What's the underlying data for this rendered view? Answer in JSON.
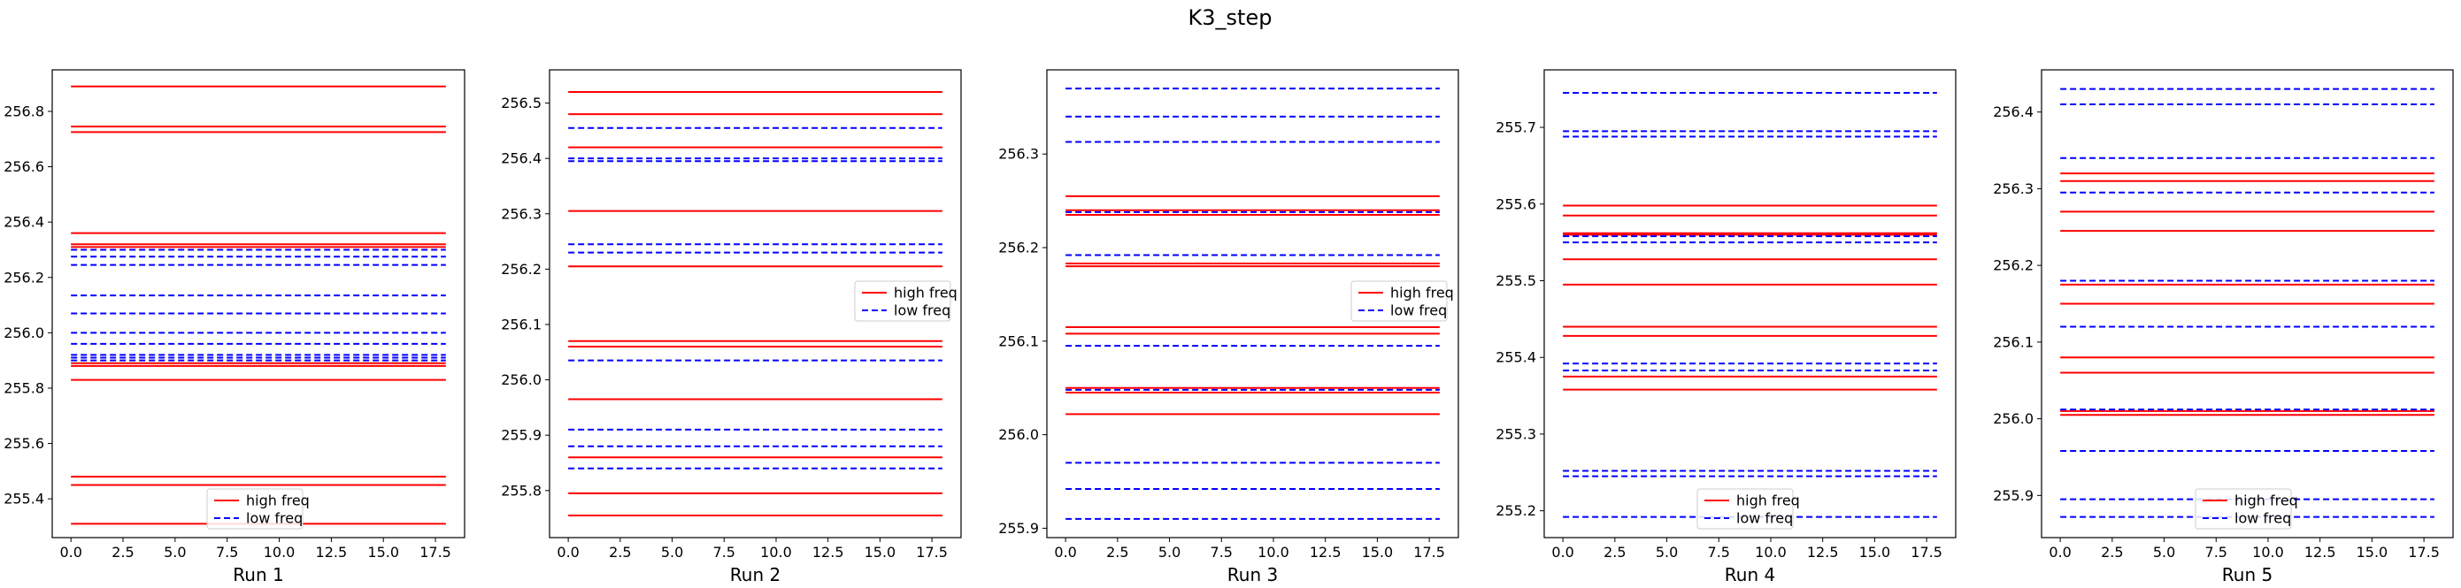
{
  "figure_title": "K3_step",
  "colors": {
    "high": "#ff0000",
    "low": "#0000ff",
    "frame": "#000000",
    "legend_border": "#cccccc"
  },
  "chart_data": [
    {
      "type": "line",
      "xlabel": "Run 1",
      "xlim": [
        -0.9,
        18.9
      ],
      "xticks": [
        0.0,
        2.5,
        5.0,
        7.5,
        10.0,
        12.5,
        15.0,
        17.5
      ],
      "xtick_labels": [
        "0.0",
        "2.5",
        "5.0",
        "7.5",
        "10.0",
        "12.5",
        "15.0",
        "17.5"
      ],
      "ylim": [
        255.26,
        256.95
      ],
      "yticks": [
        255.4,
        255.6,
        255.8,
        256.0,
        256.2,
        256.4,
        256.6,
        256.8
      ],
      "ytick_labels": [
        "255.4",
        "255.6",
        "255.8",
        "256.0",
        "256.2",
        "256.4",
        "256.6",
        "256.8"
      ],
      "x_range": [
        0,
        18
      ],
      "legend": {
        "position": "lower center",
        "entries": [
          "high freq",
          "low freq"
        ]
      },
      "series": [
        {
          "name": "high freq",
          "style": "solid",
          "levels": [
            256.89,
            256.745,
            256.725,
            256.36,
            256.32,
            256.31,
            255.89,
            255.88,
            255.83,
            255.48,
            255.45,
            255.31
          ]
        },
        {
          "name": "low freq",
          "style": "dashed",
          "levels": [
            256.3,
            256.275,
            256.245,
            256.135,
            256.07,
            256.0,
            255.96,
            255.92,
            255.91,
            255.9
          ]
        }
      ]
    },
    {
      "type": "line",
      "xlabel": "Run 2",
      "xlim": [
        -0.9,
        18.9
      ],
      "xticks": [
        0.0,
        2.5,
        5.0,
        7.5,
        10.0,
        12.5,
        15.0,
        17.5
      ],
      "xtick_labels": [
        "0.0",
        "2.5",
        "5.0",
        "7.5",
        "10.0",
        "12.5",
        "15.0",
        "17.5"
      ],
      "ylim": [
        255.715,
        256.56
      ],
      "yticks": [
        255.8,
        255.9,
        256.0,
        256.1,
        256.2,
        256.3,
        256.4,
        256.5
      ],
      "ytick_labels": [
        "255.8",
        "255.9",
        "256.0",
        "256.1",
        "256.2",
        "256.3",
        "256.4",
        "256.5"
      ],
      "x_range": [
        0,
        18
      ],
      "legend": {
        "position": "center right",
        "entries": [
          "high freq",
          "low freq"
        ]
      },
      "series": [
        {
          "name": "high freq",
          "style": "solid",
          "levels": [
            256.52,
            256.48,
            256.42,
            256.305,
            256.205,
            256.07,
            256.06,
            255.965,
            255.86,
            255.795,
            255.755
          ]
        },
        {
          "name": "low freq",
          "style": "dashed",
          "levels": [
            256.455,
            256.4,
            256.395,
            256.245,
            256.23,
            256.035,
            255.91,
            255.88,
            255.84
          ]
        }
      ]
    },
    {
      "type": "line",
      "xlabel": "Run 3",
      "xlim": [
        -0.9,
        18.9
      ],
      "xticks": [
        0.0,
        2.5,
        5.0,
        7.5,
        10.0,
        12.5,
        15.0,
        17.5
      ],
      "xtick_labels": [
        "0.0",
        "2.5",
        "5.0",
        "7.5",
        "10.0",
        "12.5",
        "15.0",
        "17.5"
      ],
      "ylim": [
        255.89,
        256.39
      ],
      "yticks": [
        255.9,
        256.0,
        256.1,
        256.2,
        256.3
      ],
      "ytick_labels": [
        "255.9",
        "256.0",
        "256.1",
        "256.2",
        "256.3"
      ],
      "x_range": [
        0,
        18
      ],
      "legend": {
        "position": "center right",
        "entries": [
          "high freq",
          "low freq"
        ]
      },
      "series": [
        {
          "name": "high freq",
          "style": "solid",
          "levels": [
            256.255,
            256.24,
            256.235,
            256.183,
            256.18,
            256.115,
            256.108,
            256.05,
            256.045,
            256.022
          ]
        },
        {
          "name": "low freq",
          "style": "dashed",
          "levels": [
            256.37,
            256.34,
            256.313,
            256.238,
            256.192,
            256.095,
            256.048,
            255.97,
            255.942,
            255.91
          ]
        }
      ]
    },
    {
      "type": "line",
      "xlabel": "Run 4",
      "xlim": [
        -0.9,
        18.9
      ],
      "xticks": [
        0.0,
        2.5,
        5.0,
        7.5,
        10.0,
        12.5,
        15.0,
        17.5
      ],
      "xtick_labels": [
        "0.0",
        "2.5",
        "5.0",
        "7.5",
        "10.0",
        "12.5",
        "15.0",
        "17.5"
      ],
      "ylim": [
        255.165,
        255.775
      ],
      "yticks": [
        255.2,
        255.3,
        255.4,
        255.5,
        255.6,
        255.7
      ],
      "ytick_labels": [
        "255.2",
        "255.3",
        "255.4",
        "255.5",
        "255.6",
        "255.7"
      ],
      "x_range": [
        0,
        18
      ],
      "legend": {
        "position": "lower center",
        "entries": [
          "high freq",
          "low freq"
        ]
      },
      "series": [
        {
          "name": "high freq",
          "style": "solid",
          "levels": [
            255.598,
            255.585,
            255.562,
            255.56,
            255.528,
            255.495,
            255.44,
            255.428,
            255.375,
            255.358
          ]
        },
        {
          "name": "low freq",
          "style": "dashed",
          "levels": [
            255.745,
            255.695,
            255.688,
            255.558,
            255.55,
            255.392,
            255.383,
            255.252,
            255.245,
            255.192
          ]
        }
      ]
    },
    {
      "type": "line",
      "xlabel": "Run 5",
      "xlim": [
        -0.9,
        18.9
      ],
      "xticks": [
        0.0,
        2.5,
        5.0,
        7.5,
        10.0,
        12.5,
        15.0,
        17.5
      ],
      "xtick_labels": [
        "0.0",
        "2.5",
        "5.0",
        "7.5",
        "10.0",
        "12.5",
        "15.0",
        "17.5"
      ],
      "ylim": [
        255.845,
        256.455
      ],
      "yticks": [
        255.9,
        256.0,
        256.1,
        256.2,
        256.3,
        256.4
      ],
      "ytick_labels": [
        "255.9",
        "256.0",
        "256.1",
        "256.2",
        "256.3",
        "256.4"
      ],
      "x_range": [
        0,
        18
      ],
      "legend": {
        "position": "lower center",
        "entries": [
          "high freq",
          "low freq"
        ]
      },
      "series": [
        {
          "name": "high freq",
          "style": "solid",
          "levels": [
            256.32,
            256.31,
            256.27,
            256.245,
            256.175,
            256.15,
            256.08,
            256.06,
            256.01,
            256.005
          ]
        },
        {
          "name": "low freq",
          "style": "dashed",
          "levels": [
            256.43,
            256.41,
            256.34,
            256.295,
            256.18,
            256.12,
            256.012,
            255.958,
            255.895,
            255.872
          ]
        }
      ]
    }
  ]
}
